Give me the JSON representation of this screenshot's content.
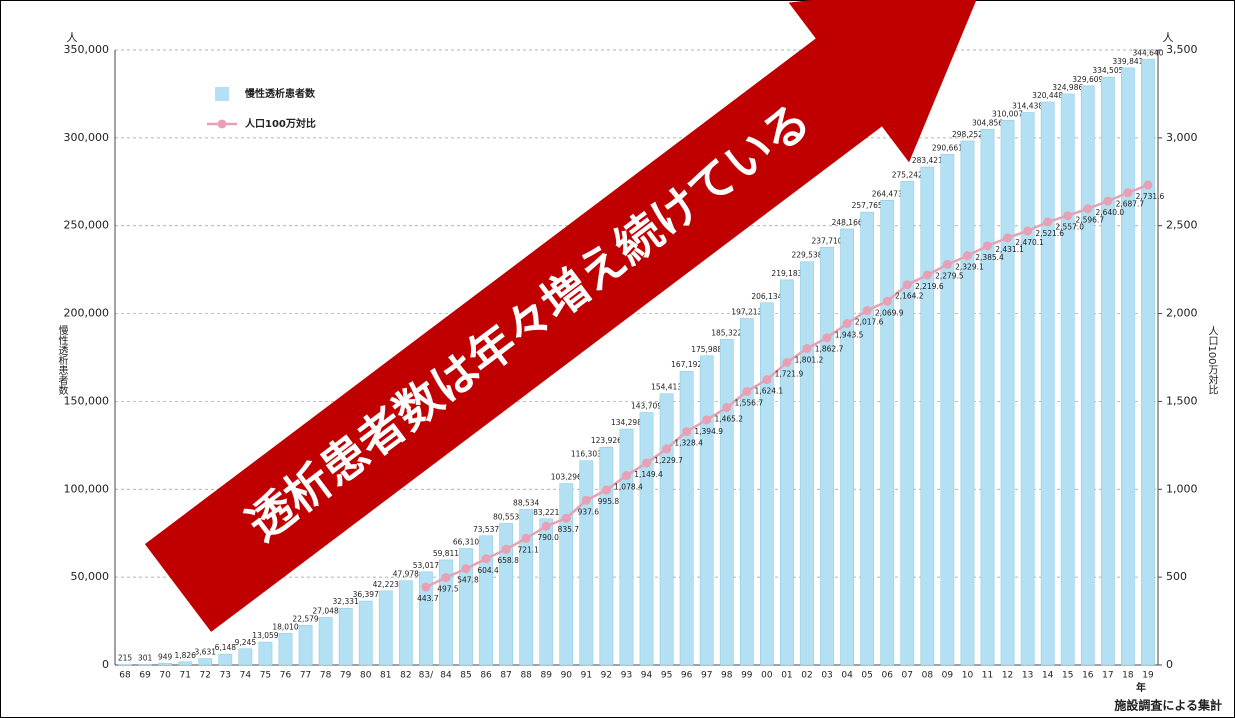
{
  "chart_data": {
    "type": "bar",
    "annotation": "透析患者数は年々増え続けている",
    "footnote": "施設調査による集計",
    "x_unit": "年",
    "y_unit": "人",
    "y2_unit": "人",
    "ylabel": "慢性透析患者数",
    "y2label": "人口100万対比",
    "legend": "upper left",
    "grid": true,
    "categories": [
      "68",
      "69",
      "70",
      "71",
      "72",
      "73",
      "74",
      "75",
      "76",
      "77",
      "78",
      "79",
      "80",
      "81",
      "82",
      "83/",
      "84",
      "85",
      "86",
      "87",
      "88",
      "89",
      "90",
      "91",
      "92",
      "93",
      "94",
      "95",
      "96",
      "97",
      "98",
      "99",
      "00",
      "01",
      "02",
      "03",
      "04",
      "05",
      "06",
      "07",
      "08",
      "09",
      "10",
      "11",
      "12",
      "13",
      "14",
      "15",
      "16",
      "17",
      "18",
      "19"
    ],
    "ylim": [
      0,
      350000
    ],
    "yticks": [
      0,
      {
        "value": 50000,
        "label": "50,000"
      },
      {
        "value": 100000,
        "label": "100,000"
      },
      {
        "value": 150000,
        "label": "150,000"
      },
      {
        "value": 200000,
        "label": "200,000"
      },
      {
        "value": 250000,
        "label": "250,000"
      },
      {
        "value": 300000,
        "label": "300,000"
      },
      {
        "value": 350000,
        "label": "350,000"
      }
    ],
    "y2lim": [
      0,
      3500
    ],
    "y2ticks": [
      0,
      500,
      {
        "value": 1000,
        "label": "1,000"
      },
      {
        "value": 1500,
        "label": "1,500"
      },
      {
        "value": 2000,
        "label": "2,000"
      },
      {
        "value": 2500,
        "label": "2,500"
      },
      {
        "value": 3000,
        "label": "3,000"
      },
      {
        "value": 3500,
        "label": "3,500"
      }
    ],
    "series": [
      {
        "name": "慢性透析患者数",
        "type": "bar",
        "color": "#b3e0f2",
        "values": [
          215,
          301,
          949,
          1826,
          3631,
          6148,
          9245,
          13059,
          18010,
          22579,
          27048,
          32331,
          36397,
          42223,
          47978,
          53017,
          59811,
          66310,
          73537,
          80553,
          88534,
          83221,
          103296,
          116303,
          123926,
          134298,
          143709,
          154413,
          167192,
          175988,
          185322,
          197213,
          206134,
          219183,
          229538,
          237710,
          248166,
          257765,
          264473,
          275242,
          283421,
          290661,
          298252,
          304856,
          310007,
          314438,
          320448,
          324986,
          329609,
          334505,
          339841,
          344640
        ],
        "value_labels": [
          "215",
          "301",
          "949",
          "1,826",
          "3,631",
          "6,148",
          "9,245",
          "13,059",
          "18,010",
          "22,579",
          "27,048",
          "32,331",
          "36,397",
          "42,223",
          "47,978",
          "53,017",
          "59,811",
          "66,310",
          "73,537",
          "80,553",
          "88,534",
          "83,221",
          "103,296",
          "116,303",
          "123,926",
          "134,298",
          "143,709",
          "154,413",
          "167,192",
          "175,988",
          "185,322",
          "197,213",
          "206,134",
          "219,183",
          "229,538",
          "237,710",
          "248,166",
          "257,765",
          "264,473",
          "275,242",
          "283,421",
          "290,661",
          "298,252",
          "304,856",
          "310,007",
          "314,438",
          "320,448",
          "324,986",
          "329,609",
          "334,505",
          "339,841",
          "344,640"
        ]
      },
      {
        "name": "人口100万対比",
        "type": "line",
        "axis": "y2",
        "color": "#e8a0b4",
        "values": [
          null,
          null,
          null,
          null,
          null,
          null,
          null,
          null,
          null,
          null,
          null,
          null,
          null,
          null,
          null,
          443.7,
          497.5,
          547.8,
          604.4,
          658.8,
          721.1,
          790.0,
          835.7,
          937.6,
          995.8,
          1078.4,
          1149.4,
          1229.7,
          1328.4,
          1394.9,
          1465.2,
          1556.7,
          1624.1,
          1721.9,
          1801.2,
          1862.7,
          1943.5,
          2017.6,
          2069.9,
          2164.2,
          2219.6,
          2279.5,
          2329.1,
          2385.4,
          2431.1,
          2470.1,
          2521.6,
          2557.0,
          2596.7,
          2640.0,
          2687.7,
          2731.6
        ],
        "value_labels": [
          null,
          null,
          null,
          null,
          null,
          null,
          null,
          null,
          null,
          null,
          null,
          null,
          null,
          null,
          null,
          "443.7",
          "497.5",
          "547.8",
          "604.4",
          "658.8",
          "721.1",
          "790.0",
          "835.7",
          "937.6",
          "995.8",
          "1,078.4",
          "1,149.4",
          "1,229.7",
          "1,328.4",
          "1,394.9",
          "1,465.2",
          "1,556.7",
          "1,624.1",
          "1,721.9",
          "1,801.2",
          "1,862.7",
          "1,943.5",
          "2,017.6",
          "2,069.9",
          "2,164.2",
          "2,219.6",
          "2,279.5",
          "2,329.1",
          "2,385.4",
          "2,431.1",
          "2,470.1",
          "2,521.6",
          "2,557.0",
          "2,596.7",
          "2,640.0",
          "2,687.7",
          "2,731.6"
        ]
      }
    ]
  }
}
